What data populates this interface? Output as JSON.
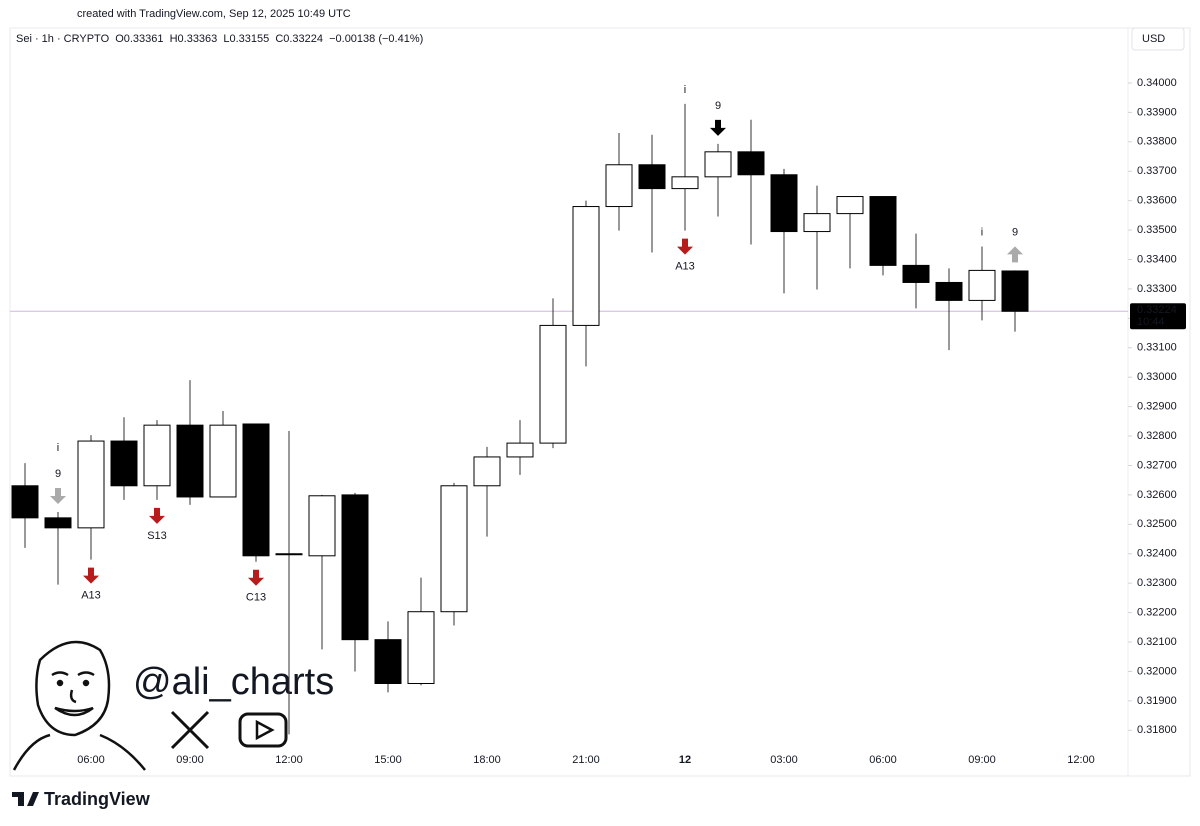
{
  "chart_data": {
    "type": "candlestick",
    "created": "created with TradingView.com, Sep 12, 2025 10:49 UTC",
    "legend": [
      "Sei · 1h · CRYPTO",
      "O0.33361",
      "H0.33363",
      "L0.33155",
      "C0.33224",
      "−0.00138 (−0.41%)"
    ],
    "currency": "USD",
    "last_price": 0.33224,
    "countdown": "10:44",
    "watermark": "@ali_charts",
    "brand": "TradingView",
    "up_color": "#ffffff",
    "down_color": "#000000",
    "border_color": "#000000",
    "wick_color": "#333333",
    "price_line_color": "#cdb8dc",
    "categories": [
      null,
      null,
      "06:00",
      null,
      null,
      "09:00",
      null,
      null,
      "12:00",
      null,
      null,
      "15:00",
      null,
      null,
      "18:00",
      null,
      null,
      "21:00",
      null,
      null,
      "12",
      null,
      null,
      "03:00",
      null,
      null,
      "06:00",
      null,
      null,
      "09:00",
      null,
      null,
      "12:00"
    ],
    "open": [
      0.32631,
      0.32522,
      0.32488,
      0.32783,
      0.32631,
      0.32837,
      0.32593,
      0.32841,
      0.324,
      0.32393,
      0.326,
      0.32108,
      0.31959,
      0.32203,
      0.32631,
      0.32729,
      0.32776,
      0.33176,
      0.3358,
      0.33722,
      0.33641,
      0.33681,
      0.33766,
      0.33688,
      0.33495,
      0.33556,
      0.33614,
      0.3338,
      0.33322,
      0.33261,
      0.33361,
      null,
      null
    ],
    "high": [
      0.32708,
      0.32542,
      0.32803,
      0.32864,
      0.32854,
      0.3299,
      0.32885,
      0.32841,
      0.32817,
      0.326,
      0.32607,
      0.3217,
      0.32319,
      0.32641,
      0.32763,
      0.32854,
      0.33268,
      0.336,
      0.3383,
      0.33824,
      0.33929,
      0.33793,
      0.33875,
      0.33708,
      0.33651,
      0.33614,
      0.33614,
      0.33488,
      0.3337,
      0.33444,
      0.33363,
      null,
      null
    ],
    "low": [
      0.3242,
      0.32295,
      0.3238,
      0.32583,
      0.32583,
      0.32566,
      0.32593,
      0.32373,
      0.31786,
      0.32075,
      0.32,
      0.31929,
      0.31953,
      0.32156,
      0.32458,
      0.32668,
      0.32759,
      0.33037,
      0.33498,
      0.33424,
      0.33498,
      0.33546,
      0.33451,
      0.33285,
      0.33298,
      0.3337,
      0.33346,
      0.33234,
      0.33092,
      0.33193,
      0.33155,
      null,
      null
    ],
    "close": [
      0.32522,
      0.32488,
      0.32783,
      0.32631,
      0.32837,
      0.32593,
      0.32837,
      0.32393,
      0.32397,
      0.32597,
      0.32108,
      0.31959,
      0.32203,
      0.32631,
      0.32729,
      0.32776,
      0.33176,
      0.3358,
      0.33722,
      0.33641,
      0.33681,
      0.33766,
      0.33688,
      0.33495,
      0.33556,
      0.33614,
      0.3338,
      0.33322,
      0.33261,
      0.33363,
      0.33224,
      null,
      null
    ],
    "signals": [
      null,
      {
        "above": {
          "arrow": "#aaaaaa",
          "labels": [
            {
              "text": "9",
              "color": "#2e9e63"
            },
            {
              "text": "i",
              "color": "#f5a000"
            }
          ]
        }
      },
      {
        "below": {
          "arrow": "#b71c1c",
          "labels": [
            {
              "text": "A13",
              "color": "#2196c8"
            }
          ]
        }
      },
      null,
      {
        "below": {
          "arrow": "#b71c1c",
          "labels": [
            {
              "text": "S13",
              "color": "#e8a317"
            }
          ]
        }
      },
      null,
      null,
      {
        "below": {
          "arrow": "#b71c1c",
          "labels": [
            {
              "text": "C13",
              "color": "#d44fc0"
            }
          ]
        }
      },
      null,
      null,
      null,
      null,
      null,
      null,
      null,
      null,
      null,
      null,
      null,
      null,
      {
        "above": {
          "labels": [
            {
              "text": "i",
              "color": "#f5a000"
            }
          ]
        },
        "below": {
          "arrow": "#b71c1c",
          "labels": [
            {
              "text": "A13",
              "color": "#2196c8"
            }
          ]
        }
      },
      {
        "above": {
          "arrow": "#000000",
          "labels": [
            {
              "text": "9",
              "color": "#2e9e63"
            }
          ]
        }
      },
      null,
      null,
      null,
      null,
      null,
      null,
      null,
      {
        "above": {
          "labels": [
            {
              "text": "i",
              "color": "#f5a000"
            }
          ]
        }
      },
      {
        "above": {
          "arrow": "#aaaaaa",
          "arrow_dir": "up",
          "labels": [
            {
              "text": "9",
              "color": "#e57373"
            }
          ]
        }
      },
      null,
      null
    ],
    "ylim": [
      0.3175,
      0.3418
    ],
    "yticks": [
      {
        "value": 0.318,
        "label": "0.31800"
      },
      {
        "value": 0.319,
        "label": "0.31900"
      },
      {
        "value": 0.32,
        "label": "0.32000"
      },
      {
        "value": 0.321,
        "label": "0.32100"
      },
      {
        "value": 0.322,
        "label": "0.32200"
      },
      {
        "value": 0.323,
        "label": "0.32300"
      },
      {
        "value": 0.324,
        "label": "0.32400"
      },
      {
        "value": 0.325,
        "label": "0.32500"
      },
      {
        "value": 0.326,
        "label": "0.32600"
      },
      {
        "value": 0.327,
        "label": "0.32700"
      },
      {
        "value": 0.328,
        "label": "0.32800"
      },
      {
        "value": 0.329,
        "label": "0.32900"
      },
      {
        "value": 0.33,
        "label": "0.33000"
      },
      {
        "value": 0.331,
        "label": "0.33100"
      },
      {
        "value": 0.332,
        "label": "0.33200"
      },
      {
        "value": 0.333,
        "label": "0.33300"
      },
      {
        "value": 0.334,
        "label": "0.33400"
      },
      {
        "value": 0.335,
        "label": "0.33500"
      },
      {
        "value": 0.336,
        "label": "0.33600"
      },
      {
        "value": 0.337,
        "label": "0.33700"
      },
      {
        "value": 0.338,
        "label": "0.33800"
      },
      {
        "value": 0.339,
        "label": "0.33900"
      },
      {
        "value": 0.34,
        "label": "0.34000"
      }
    ]
  }
}
